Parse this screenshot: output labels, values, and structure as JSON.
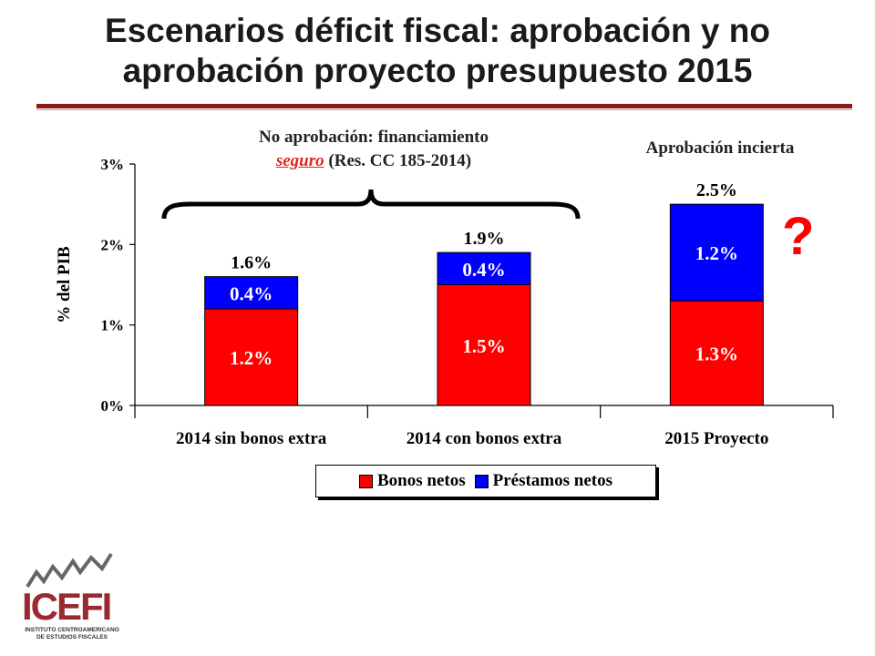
{
  "title": {
    "line1": "Escenarios déficit fiscal: aprobación y no",
    "line2": "aprobación proyecto presupuesto 2015"
  },
  "annotations": {
    "left_line1": "No aprobación: financiamiento",
    "left_underlined": "seguro",
    "left_rest": " (Res. CC 185-2014)",
    "right": "Aprobación incierta",
    "question_mark": "?"
  },
  "logo": {
    "name": "ICEFI",
    "subtitle_line1": "INSTITUTO CENTROAMERICANO",
    "subtitle_line2": "DE ESTUDIOS FISCALES"
  },
  "colors": {
    "bonos": "#ff0000",
    "prestamos": "#0000ff",
    "rule": "#8b1a1a"
  },
  "chart_data": {
    "type": "bar",
    "stacked": true,
    "categories": [
      "2014 sin bonos extra",
      "2014 con bonos extra",
      "2015 Proyecto"
    ],
    "series": [
      {
        "name": "Bonos netos",
        "values": [
          1.2,
          1.5,
          1.3
        ],
        "labels": [
          "1.2%",
          "1.5%",
          "1.3%"
        ],
        "color": "#ff0000"
      },
      {
        "name": "Préstamos netos",
        "values": [
          0.4,
          0.4,
          1.2
        ],
        "labels": [
          "0.4%",
          "0.4%",
          "1.2%"
        ],
        "color": "#0000ff"
      }
    ],
    "totals": [
      "1.6%",
      "1.9%",
      "2.5%"
    ],
    "ylabel": "% del PIB",
    "ylim": [
      0,
      3
    ],
    "yticks": [
      "0%",
      "1%",
      "2%",
      "3%"
    ],
    "legend_position": "bottom",
    "grid": false
  }
}
